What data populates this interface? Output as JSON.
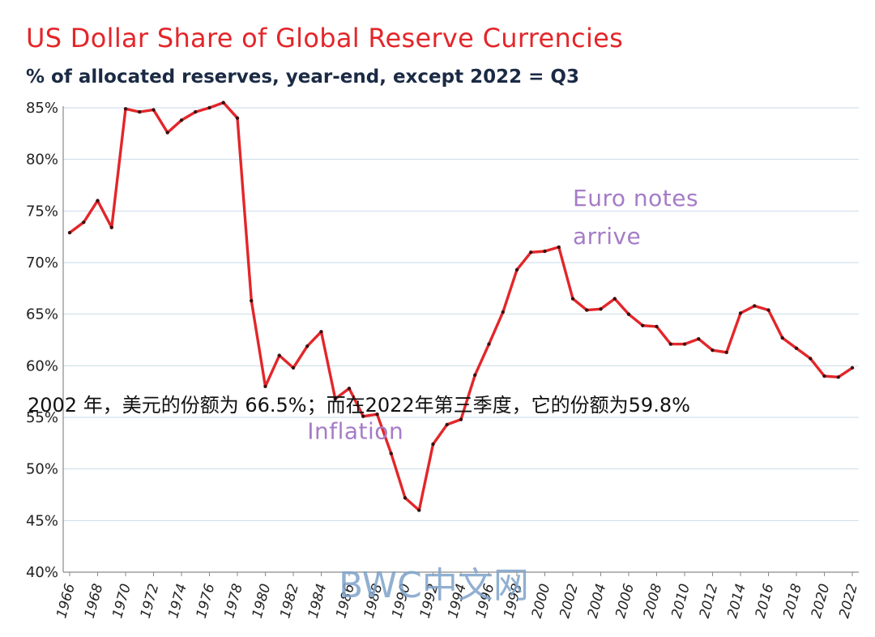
{
  "chart_data": {
    "type": "line",
    "title": "US Dollar Share of Global Reserve Currencies",
    "subtitle": "% of allocated reserves, year-end, except 2022 = Q3",
    "ylim": [
      40,
      85
    ],
    "y_ticks": [
      "40%",
      "45%",
      "50%",
      "55%",
      "60%",
      "65%",
      "70%",
      "75%",
      "80%",
      "85%"
    ],
    "x_tick_labels": [
      "1966",
      "1968",
      "1970",
      "1972",
      "1974",
      "1976",
      "1978",
      "1980",
      "1982",
      "1984",
      "1986",
      "1988",
      "1990",
      "1992",
      "1994",
      "1996",
      "1998",
      "2000",
      "2002",
      "2004",
      "2006",
      "2008",
      "2010",
      "2012",
      "2014",
      "2016",
      "2018",
      "2020",
      "2022"
    ],
    "grid": "horizontal",
    "line_color": "#e3262a",
    "series": [
      {
        "x": [
          1966,
          1967,
          1968,
          1969,
          1970,
          1971,
          1972,
          1973,
          1974,
          1975,
          1976,
          1977,
          1978,
          1979,
          1980,
          1981,
          1982,
          1983,
          1984,
          1985,
          1986,
          1987,
          1988,
          1989,
          1990,
          1991,
          1992,
          1993,
          1994,
          1995,
          1996,
          1997,
          1998,
          1999,
          2000,
          2001,
          2002,
          2003,
          2004,
          2005,
          2006,
          2007,
          2008,
          2009,
          2010,
          2011,
          2012,
          2013,
          2014,
          2015,
          2016,
          2017,
          2018,
          2019,
          2020,
          2021,
          2022
        ],
        "values": [
          72.9,
          73.9,
          76.0,
          73.4,
          84.9,
          84.6,
          84.8,
          82.6,
          83.8,
          84.6,
          85.0,
          85.5,
          84.0,
          66.3,
          58.0,
          61.0,
          59.8,
          61.9,
          63.3,
          56.8,
          57.8,
          55.1,
          55.3,
          51.5,
          47.2,
          46.0,
          52.4,
          54.3,
          54.8,
          59.1,
          62.1,
          65.2,
          69.3,
          71.0,
          71.1,
          71.5,
          66.5,
          65.4,
          65.5,
          66.5,
          65.0,
          63.9,
          63.8,
          62.1,
          62.1,
          62.6,
          61.5,
          61.3,
          65.1,
          65.8,
          65.4,
          62.7,
          61.7,
          60.7,
          59.0,
          58.9,
          59.8
        ]
      }
    ],
    "annotations": [
      {
        "text": "Euro notes",
        "x": 2002,
        "y": 75.5
      },
      {
        "text": "arrive",
        "x": 2002,
        "y": 71.8
      },
      {
        "text": "Inflation",
        "x": 1983,
        "y": 52.9
      }
    ]
  },
  "overlay_caption": "2002 年，美元的份额为 66.5%；而在2022年第三季度，它的份额为59.8%",
  "watermark": "BWC中文网"
}
